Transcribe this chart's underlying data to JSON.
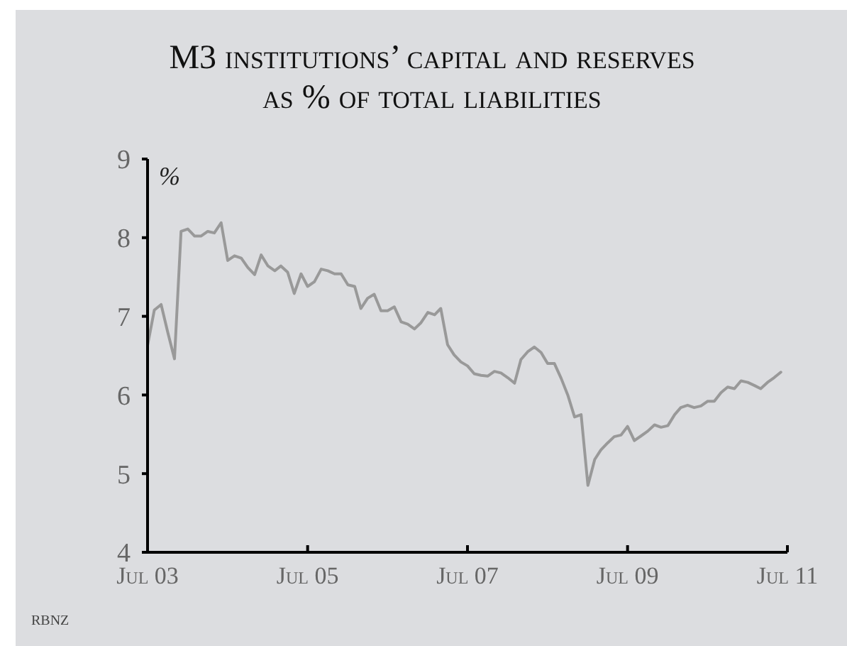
{
  "chart_data": {
    "type": "line",
    "title": "M3 institutions’ capital and reserves",
    "subtitle": "as % of total liabilities",
    "ylabel": "%",
    "annotations": [
      "RBNZ"
    ],
    "x": [
      "2003-07",
      "2003-08",
      "2003-09",
      "2003-10",
      "2003-11",
      "2003-12",
      "2004-01",
      "2004-02",
      "2004-03",
      "2004-04",
      "2004-05",
      "2004-06",
      "2004-07",
      "2004-08",
      "2004-09",
      "2004-10",
      "2004-11",
      "2004-12",
      "2005-01",
      "2005-02",
      "2005-03",
      "2005-04",
      "2005-05",
      "2005-06",
      "2005-07",
      "2005-08",
      "2005-09",
      "2005-10",
      "2005-11",
      "2005-12",
      "2006-01",
      "2006-02",
      "2006-03",
      "2006-04",
      "2006-05",
      "2006-06",
      "2006-07",
      "2006-08",
      "2006-09",
      "2006-10",
      "2006-11",
      "2006-12",
      "2007-01",
      "2007-02",
      "2007-03",
      "2007-04",
      "2007-05",
      "2007-06",
      "2007-07",
      "2007-08",
      "2007-09",
      "2007-10",
      "2007-11",
      "2007-12",
      "2008-01",
      "2008-02",
      "2008-03",
      "2008-04",
      "2008-05",
      "2008-06",
      "2008-07",
      "2008-08",
      "2008-09",
      "2008-10",
      "2008-11",
      "2008-12",
      "2009-01",
      "2009-02",
      "2009-03",
      "2009-04",
      "2009-05",
      "2009-06",
      "2009-07",
      "2009-08",
      "2009-09",
      "2009-10",
      "2009-11",
      "2009-12",
      "2010-01",
      "2010-02",
      "2010-03",
      "2010-04",
      "2010-05",
      "2010-06",
      "2010-07",
      "2010-08",
      "2010-09",
      "2010-10",
      "2010-11",
      "2010-12",
      "2011-01",
      "2011-02",
      "2011-03",
      "2011-04",
      "2011-05",
      "2011-06"
    ],
    "series": [
      {
        "color": "#999999",
        "values": [
          6.63,
          7.08,
          7.15,
          6.8,
          6.46,
          8.08,
          8.11,
          8.02,
          8.02,
          8.08,
          8.06,
          8.19,
          7.71,
          7.77,
          7.74,
          7.62,
          7.53,
          7.78,
          7.64,
          7.58,
          7.64,
          7.56,
          7.29,
          7.54,
          7.38,
          7.44,
          7.6,
          7.58,
          7.54,
          7.54,
          7.4,
          7.38,
          7.1,
          7.23,
          7.28,
          7.07,
          7.07,
          7.12,
          6.93,
          6.9,
          6.84,
          6.92,
          7.05,
          7.02,
          7.1,
          6.64,
          6.51,
          6.42,
          6.37,
          6.27,
          6.25,
          6.24,
          6.3,
          6.28,
          6.22,
          6.15,
          6.45,
          6.55,
          6.61,
          6.54,
          6.4,
          6.4,
          6.21,
          6.0,
          5.72,
          5.75,
          4.85,
          5.18,
          5.3,
          5.39,
          5.47,
          5.49,
          5.6,
          5.42,
          5.48,
          5.54,
          5.62,
          5.59,
          5.61,
          5.75,
          5.84,
          5.87,
          5.84,
          5.86,
          5.92,
          5.92,
          6.03,
          6.1,
          6.08,
          6.18,
          6.16,
          6.12,
          6.08,
          6.16,
          6.22,
          6.29
        ]
      }
    ],
    "xlim": [
      "2003-07",
      "2011-07"
    ],
    "xticks": [
      {
        "value": "2003-07",
        "label": "Jul 03"
      },
      {
        "value": "2005-07",
        "label": "Jul 05"
      },
      {
        "value": "2007-07",
        "label": "Jul 07"
      },
      {
        "value": "2009-07",
        "label": "Jul 09"
      },
      {
        "value": "2011-07",
        "label": "Jul 11"
      }
    ],
    "ylim": [
      4,
      9
    ],
    "yticks": [
      4,
      5,
      6,
      7,
      8,
      9
    ],
    "grid": false,
    "line_style": "solid",
    "marker": "none"
  }
}
